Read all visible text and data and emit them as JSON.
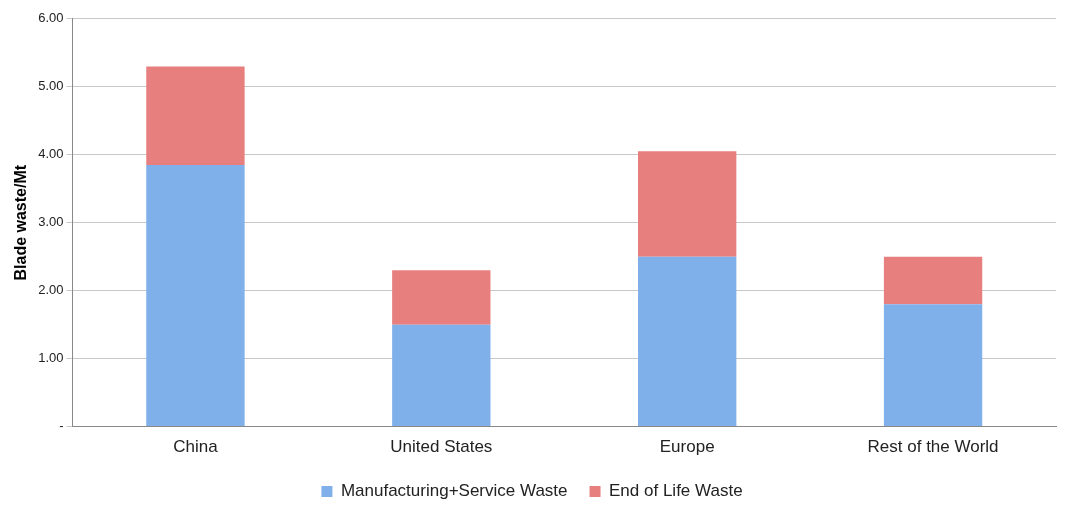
{
  "chart_data": {
    "type": "bar",
    "stacked": true,
    "ylabel": "Blade waste/Mt",
    "categories": [
      "China",
      "United States",
      "Europe",
      "Rest of the World"
    ],
    "series": [
      {
        "name": "Manufacturing+Service Waste",
        "color": "#7fb0ea",
        "values": [
          3.85,
          1.5,
          2.5,
          1.8
        ]
      },
      {
        "name": "End of Life Waste",
        "color": "#e87f7f",
        "values": [
          1.45,
          0.8,
          1.55,
          0.7
        ]
      }
    ],
    "ylim": [
      0,
      6
    ],
    "yticks": [
      {
        "value": 0,
        "label": "-"
      },
      {
        "value": 1,
        "label": "1.00"
      },
      {
        "value": 2,
        "label": "2.00"
      },
      {
        "value": 3,
        "label": "3.00"
      },
      {
        "value": 4,
        "label": "4.00"
      },
      {
        "value": 5,
        "label": "5.00"
      },
      {
        "value": 6,
        "label": "6.00"
      }
    ],
    "grid": "y",
    "legend": "bottom"
  }
}
